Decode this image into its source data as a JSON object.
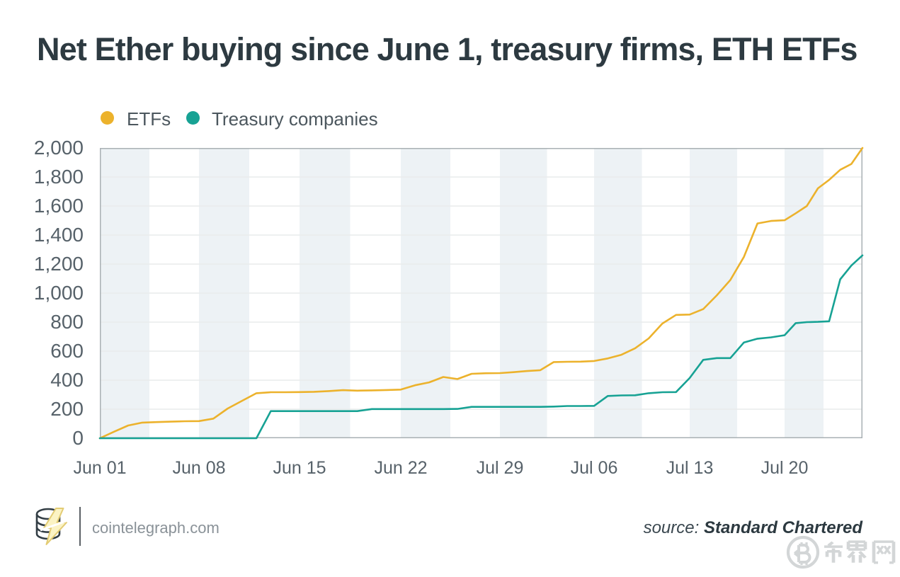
{
  "title": "Net Ether buying since June 1, treasury firms, ETH ETFs",
  "legend": {
    "items": [
      {
        "label": "ETFs",
        "color": "#ECB22C"
      },
      {
        "label": "Treasury companies",
        "color": "#17A294"
      }
    ]
  },
  "footer": {
    "logo_icon": "cointelegraph-logo",
    "site": "cointelegraph.com",
    "source_label": "source:",
    "source_value": "Standard Chartered"
  },
  "watermark": {
    "icon": "coin-icon",
    "text": "币界网",
    "color": "#D3D6D7"
  },
  "chart_data": {
    "type": "line",
    "title": "Net Ether buying since June 1, treasury firms, ETH ETFs",
    "xlabel": "",
    "ylabel": "",
    "ylim": [
      0,
      2000
    ],
    "y_ticks": [
      0,
      200,
      400,
      600,
      800,
      1000,
      1200,
      1400,
      1600,
      1800,
      2000
    ],
    "y_tick_labels": [
      "0",
      "200",
      "400",
      "600",
      "800",
      "1,000",
      "1,200",
      "1,400",
      "1,600",
      "1,800",
      "2,000"
    ],
    "x_tick_labels": [
      "Jun 01",
      "Jun 08",
      "Jun 15",
      "Jun 22",
      "Jul 29",
      "Jul 06",
      "Jul 13",
      "Jul 20"
    ],
    "x_tick_days": [
      0,
      7,
      14,
      21,
      28,
      35,
      42,
      49
    ],
    "days_total": 56,
    "grid": "horizontal",
    "split_area": true,
    "colors": {
      "stripe": "#EDF2F5",
      "gridline": "#E9EBEC",
      "border": "#A9B0B4"
    },
    "series": [
      {
        "name": "ETFs",
        "color": "#ECB22C",
        "values": [
          0,
          45,
          88,
          108,
          111,
          114,
          117,
          118,
          135,
          205,
          258,
          310,
          317,
          317,
          318,
          320,
          325,
          331,
          328,
          330,
          332,
          335,
          365,
          385,
          422,
          408,
          444,
          448,
          449,
          455,
          463,
          469,
          525,
          527,
          528,
          532,
          550,
          575,
          620,
          688,
          790,
          850,
          852,
          890,
          985,
          1090,
          1250,
          1480,
          1497,
          1502,
          1550,
          1600,
          1722,
          1780,
          1850,
          1890,
          2000
        ]
      },
      {
        "name": "Treasury companies",
        "color": "#17A294",
        "values": [
          0,
          0,
          0,
          0,
          0,
          0,
          0,
          0,
          0,
          0,
          0,
          0,
          187,
          187,
          187,
          187,
          187,
          187,
          187,
          201,
          201,
          201,
          201,
          201,
          201,
          202,
          216,
          216,
          216,
          216,
          216,
          216,
          218,
          222,
          222,
          223,
          291,
          295,
          296,
          310,
          317,
          318,
          415,
          540,
          552,
          552,
          660,
          686,
          695,
          710,
          793,
          800,
          802,
          806,
          1095,
          1190,
          1260
        ]
      }
    ]
  }
}
